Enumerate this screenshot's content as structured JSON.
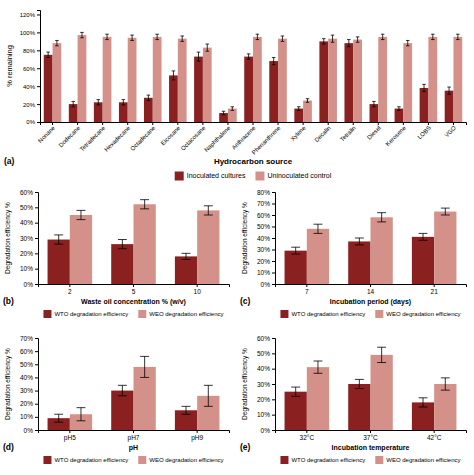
{
  "chart_data": [
    {
      "type": "bar",
      "title": "(a)",
      "xlabel": "Hydrocarbon source",
      "ylabel": "% remaining",
      "categories": [
        "Nonane",
        "Dodecane",
        "Tetradecane",
        "Hexadecane",
        "Octadecane",
        "Eicosane",
        "Octacosane",
        "Naphthalene",
        "Anthracene",
        "Phenanthrene",
        "Xylene",
        "Decalin",
        "Tetralin",
        "Diesel",
        "Kerosene",
        "LOBS",
        "VGO"
      ],
      "series": [
        {
          "name": "Inoculated cultures",
          "color": "#8B2020",
          "values": [
            75,
            20,
            22,
            22,
            27,
            52,
            73,
            10,
            73,
            68,
            15,
            90,
            88,
            20,
            15,
            38,
            35
          ],
          "errors": [
            3,
            3,
            3,
            3,
            3,
            5,
            5,
            2,
            3,
            4,
            2,
            3,
            4,
            3,
            2,
            4,
            4
          ]
        },
        {
          "name": "Uninoculated control",
          "color": "#D4918A",
          "values": [
            88,
            97,
            95,
            94,
            95,
            93,
            83,
            15,
            95,
            93,
            24,
            93,
            92,
            95,
            88,
            95,
            95
          ],
          "errors": [
            3,
            3,
            3,
            3,
            3,
            3,
            4,
            2,
            3,
            3,
            2,
            4,
            3,
            3,
            3,
            3,
            3
          ]
        }
      ],
      "ylim": [
        0,
        125
      ],
      "yticks": [
        {
          "value": 0,
          "label": "0%"
        },
        {
          "value": 20,
          "label": "20%"
        },
        {
          "value": 40,
          "label": "40%"
        },
        {
          "value": 60,
          "label": "60%"
        },
        {
          "value": 80,
          "label": "80%"
        },
        {
          "value": 100,
          "label": "100%"
        },
        {
          "value": 120,
          "label": "120%"
        }
      ],
      "legend": "bottom",
      "grid": false
    },
    {
      "type": "bar",
      "title": "(b)",
      "xlabel": "Waste oil concentration % (w/v)",
      "ylabel": "Degradation efficiency %",
      "categories": [
        "2",
        "5",
        "10"
      ],
      "series": [
        {
          "name": "WTO degradation efficiency",
          "color": "#8B2020",
          "values": [
            29,
            26,
            18
          ],
          "errors": [
            3,
            3,
            2
          ]
        },
        {
          "name": "WEO degradation efficiency",
          "color": "#D4918A",
          "values": [
            45,
            52,
            48
          ],
          "errors": [
            3,
            3,
            3
          ]
        }
      ],
      "ylim": [
        0,
        60
      ],
      "yticks": [
        {
          "value": 0,
          "label": "0%"
        },
        {
          "value": 10,
          "label": "10%"
        },
        {
          "value": 20,
          "label": "20%"
        },
        {
          "value": 30,
          "label": "30%"
        },
        {
          "value": 40,
          "label": "40%"
        },
        {
          "value": 50,
          "label": "50%"
        },
        {
          "value": 60,
          "label": "60%"
        }
      ],
      "legend": "bottom",
      "grid": false
    },
    {
      "type": "bar",
      "title": "(c)",
      "xlabel": "Incubation period (days)",
      "ylabel": "Degradation efficiency %",
      "categories": [
        "7",
        "14",
        "21"
      ],
      "series": [
        {
          "name": "WTO degradation efficiency",
          "color": "#8B2020",
          "values": [
            29,
            37,
            41
          ],
          "errors": [
            3,
            3,
            3
          ]
        },
        {
          "name": "WEO degradation efficiency",
          "color": "#D4918A",
          "values": [
            48,
            58,
            63
          ],
          "errors": [
            4,
            4,
            3
          ]
        }
      ],
      "ylim": [
        0,
        80
      ],
      "yticks": [
        {
          "value": 0,
          "label": "0%"
        },
        {
          "value": 10,
          "label": "10%"
        },
        {
          "value": 20,
          "label": "20%"
        },
        {
          "value": 30,
          "label": "30%"
        },
        {
          "value": 40,
          "label": "40%"
        },
        {
          "value": 50,
          "label": "50%"
        },
        {
          "value": 60,
          "label": "60%"
        },
        {
          "value": 70,
          "label": "70%"
        },
        {
          "value": 80,
          "label": "80%"
        }
      ],
      "legend": "bottom",
      "grid": false
    },
    {
      "type": "bar",
      "title": "(d)",
      "xlabel": "pH",
      "ylabel": "Degradation efficiency %",
      "categories": [
        "pH5",
        "pH7",
        "pH9"
      ],
      "series": [
        {
          "name": "WTO degradation efficiency",
          "color": "#8B2020",
          "values": [
            9,
            30,
            15
          ],
          "errors": [
            3,
            4,
            3
          ]
        },
        {
          "name": "WEO degradation efficiency",
          "color": "#D4918A",
          "values": [
            12,
            48,
            26
          ],
          "errors": [
            5,
            8,
            8
          ]
        }
      ],
      "ylim": [
        0,
        70
      ],
      "yticks": [
        {
          "value": 0,
          "label": "0%"
        },
        {
          "value": 10,
          "label": "10%"
        },
        {
          "value": 20,
          "label": "20%"
        },
        {
          "value": 30,
          "label": "30%"
        },
        {
          "value": 40,
          "label": "40%"
        },
        {
          "value": 50,
          "label": "50%"
        },
        {
          "value": 60,
          "label": "60%"
        },
        {
          "value": 70,
          "label": "70%"
        }
      ],
      "legend": "bottom",
      "grid": false
    },
    {
      "type": "bar",
      "title": "(e)",
      "xlabel": "Incubation temperature",
      "ylabel": "Degradation efficiency %",
      "categories": [
        "32°C",
        "37°C",
        "42°C"
      ],
      "series": [
        {
          "name": "WTO degradation efficiency",
          "color": "#8B2020",
          "values": [
            25,
            30,
            18
          ],
          "errors": [
            3,
            3,
            3
          ]
        },
        {
          "name": "WEO degradation efficiency",
          "color": "#D4918A",
          "values": [
            41,
            49,
            30
          ],
          "errors": [
            4,
            5,
            4
          ]
        }
      ],
      "ylim": [
        0,
        60
      ],
      "yticks": [
        {
          "value": 0,
          "label": "0%"
        },
        {
          "value": 10,
          "label": "10%"
        },
        {
          "value": 20,
          "label": "20%"
        },
        {
          "value": 30,
          "label": "30%"
        },
        {
          "value": 40,
          "label": "40%"
        },
        {
          "value": 50,
          "label": "50%"
        },
        {
          "value": 60,
          "label": "60%"
        }
      ],
      "legend": "bottom",
      "grid": false
    }
  ]
}
